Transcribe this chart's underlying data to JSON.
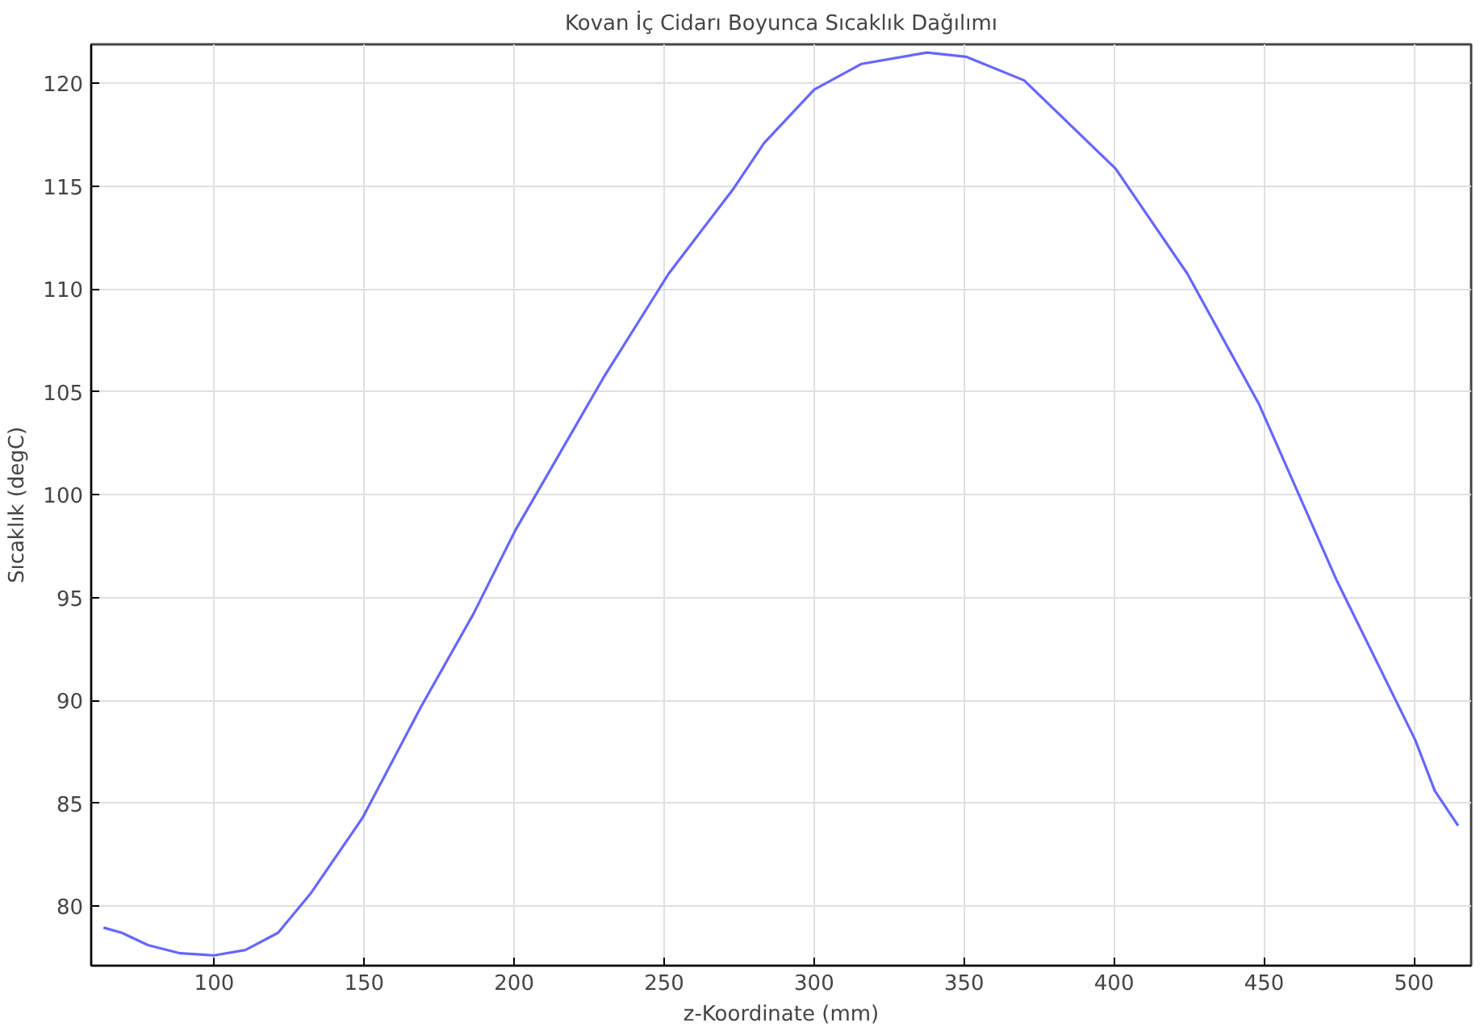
{
  "chart_data": {
    "type": "line",
    "title": "Kovan İç Cidarı Boyunca Sıcaklık Dağılımı",
    "xlabel": "z-Koordinate (mm)",
    "ylabel": "Sıcaklık (degC)",
    "x": [
      63.1,
      69.2,
      77.9,
      88.7,
      100,
      110.4,
      121.3,
      132.1,
      149.5,
      169,
      186.4,
      200.5,
      229.8,
      251.5,
      273.2,
      283.3,
      300,
      315.8,
      337.6,
      350.6,
      370,
      400.5,
      424.4,
      448.3,
      474.3,
      500.3,
      506.9,
      514.7
    ],
    "series": [
      {
        "color": "#6666ff",
        "values": [
          78.95,
          78.7,
          78.1,
          77.7,
          77.6,
          77.86,
          78.7,
          80.6,
          84.3,
          89.7,
          94.2,
          98.3,
          105.7,
          110.75,
          114.9,
          117.1,
          119.7,
          120.95,
          121.5,
          121.3,
          120.15,
          115.85,
          110.75,
          104.4,
          95.8,
          88.1,
          85.6,
          83.9
        ]
      }
    ],
    "xlim": [
      59,
      519
    ],
    "ylim": [
      77.1,
      121.9
    ],
    "xticks": [
      100,
      150,
      200,
      250,
      300,
      350,
      400,
      450,
      500
    ],
    "yticks": [
      80,
      85,
      90,
      95,
      100,
      105,
      110,
      115,
      120
    ],
    "grid": true,
    "marker": "none",
    "line_style": "solid"
  }
}
